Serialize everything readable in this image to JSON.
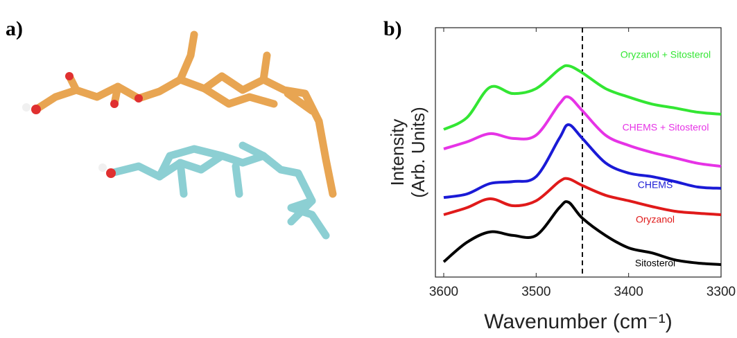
{
  "panel_a": {
    "label": "a)"
  },
  "chart_data": {
    "type": "line",
    "panel_label": "b)",
    "x_label": "Wavenumber (cm⁻¹)",
    "y_label": [
      "Intensity",
      "(Arb. Units)"
    ],
    "x": [
      3600,
      3575,
      3550,
      3525,
      3500,
      3475,
      3465,
      3450,
      3425,
      3400,
      3375,
      3350,
      3325,
      3300
    ],
    "xlim": [
      3600,
      3300
    ],
    "xticks": [
      3600,
      3500,
      3400,
      3300
    ],
    "ylim": [
      0,
      10
    ],
    "vline": 3450,
    "series": [
      {
        "name": "Oryzanol + Sitosterol",
        "color": "#33e633",
        "values": [
          5.92,
          6.39,
          7.61,
          7.36,
          7.56,
          8.33,
          8.47,
          8.19,
          7.56,
          7.22,
          6.94,
          6.78,
          6.61,
          6.53
        ]
      },
      {
        "name": "CHEMS + Sitosterol",
        "color": "#e633e6",
        "values": [
          5.14,
          5.42,
          5.75,
          5.56,
          5.69,
          6.94,
          7.22,
          6.67,
          5.69,
          5.28,
          5.0,
          4.78,
          4.56,
          4.44
        ]
      },
      {
        "name": "CHEMS",
        "color": "#1a1ad6",
        "values": [
          3.19,
          3.33,
          3.75,
          3.83,
          4.03,
          5.56,
          6.11,
          5.56,
          4.58,
          4.17,
          4.03,
          3.83,
          3.61,
          3.56
        ]
      },
      {
        "name": "Oryzanol",
        "color": "#e01a1a",
        "values": [
          2.5,
          2.78,
          3.14,
          2.86,
          3.06,
          3.83,
          3.94,
          3.67,
          3.28,
          3.06,
          2.83,
          2.64,
          2.56,
          2.5
        ]
      },
      {
        "name": "Sitosterol",
        "color": "#000000",
        "values": [
          0.61,
          1.39,
          1.81,
          1.67,
          1.67,
          2.78,
          3.0,
          2.36,
          1.67,
          1.17,
          0.97,
          0.69,
          0.56,
          0.5
        ]
      }
    ]
  }
}
